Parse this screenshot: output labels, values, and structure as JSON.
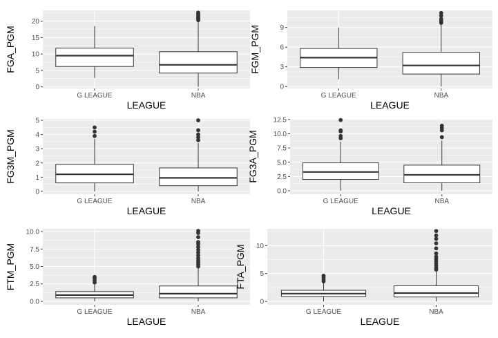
{
  "colors": {
    "panel_bg": "#ebebeb",
    "grid_major": "#ffffff",
    "box_fill": "#ffffff",
    "box_line": "#333333",
    "outlier": "#333333",
    "tick_text": "#4d4d4d"
  },
  "chart_data": [
    {
      "type": "box",
      "xlabel": "LEAGUE",
      "ylabel": "FGA_PGM",
      "categories": [
        "G LEAGUE",
        "NBA"
      ],
      "yticks": [
        0,
        5,
        10,
        15,
        20
      ],
      "ytick_labels": [
        "0",
        "5",
        "10",
        "15",
        "20"
      ],
      "ylim": [
        -0.5,
        23.3
      ],
      "grid": true,
      "boxes": [
        {
          "category": "G LEAGUE",
          "min": 2.7,
          "q1": 6.2,
          "median": 9.5,
          "q3": 11.8,
          "max": 18.5,
          "outliers": []
        },
        {
          "category": "NBA",
          "min": 0,
          "q1": 4.2,
          "median": 6.7,
          "q3": 10.7,
          "max": 20.0,
          "outliers": [
            20.3,
            20.7,
            21.0,
            21.4,
            21.8,
            22.2,
            22.6
          ]
        }
      ]
    },
    {
      "type": "box",
      "xlabel": "LEAGUE",
      "ylabel": "FGM_PGM",
      "categories": [
        "G LEAGUE",
        "NBA"
      ],
      "yticks": [
        0,
        3,
        6,
        9
      ],
      "ytick_labels": [
        "0",
        "3",
        "6",
        "9"
      ],
      "ylim": [
        -0.3,
        11.6
      ],
      "grid": true,
      "boxes": [
        {
          "category": "G LEAGUE",
          "min": 1.1,
          "q1": 2.9,
          "median": 4.4,
          "q3": 5.8,
          "max": 9.0,
          "outliers": []
        },
        {
          "category": "NBA",
          "min": 0,
          "q1": 1.9,
          "median": 3.2,
          "q3": 5.2,
          "max": 9.6,
          "outliers": [
            9.7,
            10.0,
            10.3,
            10.8,
            11.2
          ]
        }
      ]
    },
    {
      "type": "box",
      "xlabel": "LEAGUE",
      "ylabel": "FG3M_PGM",
      "categories": [
        "G LEAGUE",
        "NBA"
      ],
      "yticks": [
        0,
        1,
        2,
        3,
        4,
        5
      ],
      "ytick_labels": [
        "0",
        "1",
        "2",
        "3",
        "4",
        "5"
      ],
      "ylim": [
        -0.2,
        5.1
      ],
      "grid": true,
      "boxes": [
        {
          "category": "G LEAGUE",
          "min": 0,
          "q1": 0.6,
          "median": 1.2,
          "q3": 1.9,
          "max": 3.7,
          "outliers": [
            3.9,
            4.2,
            4.5
          ]
        },
        {
          "category": "NBA",
          "min": 0,
          "q1": 0.4,
          "median": 0.95,
          "q3": 1.65,
          "max": 3.4,
          "outliers": [
            3.6,
            3.8,
            4.0,
            4.3,
            5.0
          ]
        }
      ]
    },
    {
      "type": "box",
      "xlabel": "LEAGUE",
      "ylabel": "FG3A_PGM",
      "categories": [
        "G LEAGUE",
        "NBA"
      ],
      "yticks": [
        0,
        2.5,
        5,
        7.5,
        10,
        12.5
      ],
      "ytick_labels": [
        "0.0",
        "2.5",
        "5.0",
        "7.5",
        "10.0",
        "12.5"
      ],
      "ylim": [
        -0.6,
        12.6
      ],
      "grid": true,
      "boxes": [
        {
          "category": "G LEAGUE",
          "min": 0,
          "q1": 2.0,
          "median": 3.3,
          "q3": 4.9,
          "max": 8.6,
          "outliers": [
            9.2,
            9.6,
            10.4,
            10.6,
            12.4
          ]
        },
        {
          "category": "NBA",
          "min": 0,
          "q1": 1.4,
          "median": 2.8,
          "q3": 4.5,
          "max": 8.8,
          "outliers": [
            9.4,
            10.6,
            11.0,
            11.4
          ]
        }
      ]
    },
    {
      "type": "box",
      "xlabel": "LEAGUE",
      "ylabel": "FTM_PGM",
      "categories": [
        "G LEAGUE",
        "NBA"
      ],
      "yticks": [
        0,
        2.5,
        5,
        7.5,
        10
      ],
      "ytick_labels": [
        "0.0",
        "2.5",
        "5.0",
        "7.5",
        "10.0"
      ],
      "ylim": [
        -0.5,
        10.4
      ],
      "grid": true,
      "boxes": [
        {
          "category": "G LEAGUE",
          "min": 0,
          "q1": 0.5,
          "median": 0.9,
          "q3": 1.4,
          "max": 2.5,
          "outliers": [
            2.7,
            3.0,
            3.3,
            3.5
          ]
        },
        {
          "category": "NBA",
          "min": 0,
          "q1": 0.5,
          "median": 1.1,
          "q3": 2.2,
          "max": 4.8,
          "outliers": [
            5.0,
            5.3,
            5.6,
            5.9,
            6.2,
            6.6,
            7.0,
            7.4,
            7.8,
            8.2,
            8.5,
            9.2,
            9.8,
            10.1
          ]
        }
      ]
    },
    {
      "type": "box",
      "xlabel": "LEAGUE",
      "ylabel": "FTA_PGM",
      "categories": [
        "G LEAGUE",
        "NBA"
      ],
      "yticks": [
        0,
        5,
        10
      ],
      "ytick_labels": [
        "0",
        "5",
        "10"
      ],
      "ylim": [
        -0.6,
        13.0
      ],
      "grid": true,
      "boxes": [
        {
          "category": "G LEAGUE",
          "min": 0,
          "q1": 0.9,
          "median": 1.4,
          "q3": 2.0,
          "max": 3.3,
          "outliers": [
            3.6,
            3.9,
            4.3,
            4.6
          ]
        },
        {
          "category": "NBA",
          "min": 0,
          "q1": 0.8,
          "median": 1.5,
          "q3": 2.8,
          "max": 5.5,
          "outliers": [
            5.7,
            6.0,
            6.4,
            6.8,
            7.2,
            7.6,
            8.0,
            8.6,
            9.5,
            10.4,
            11.2,
            11.8,
            12.6
          ]
        }
      ]
    }
  ]
}
